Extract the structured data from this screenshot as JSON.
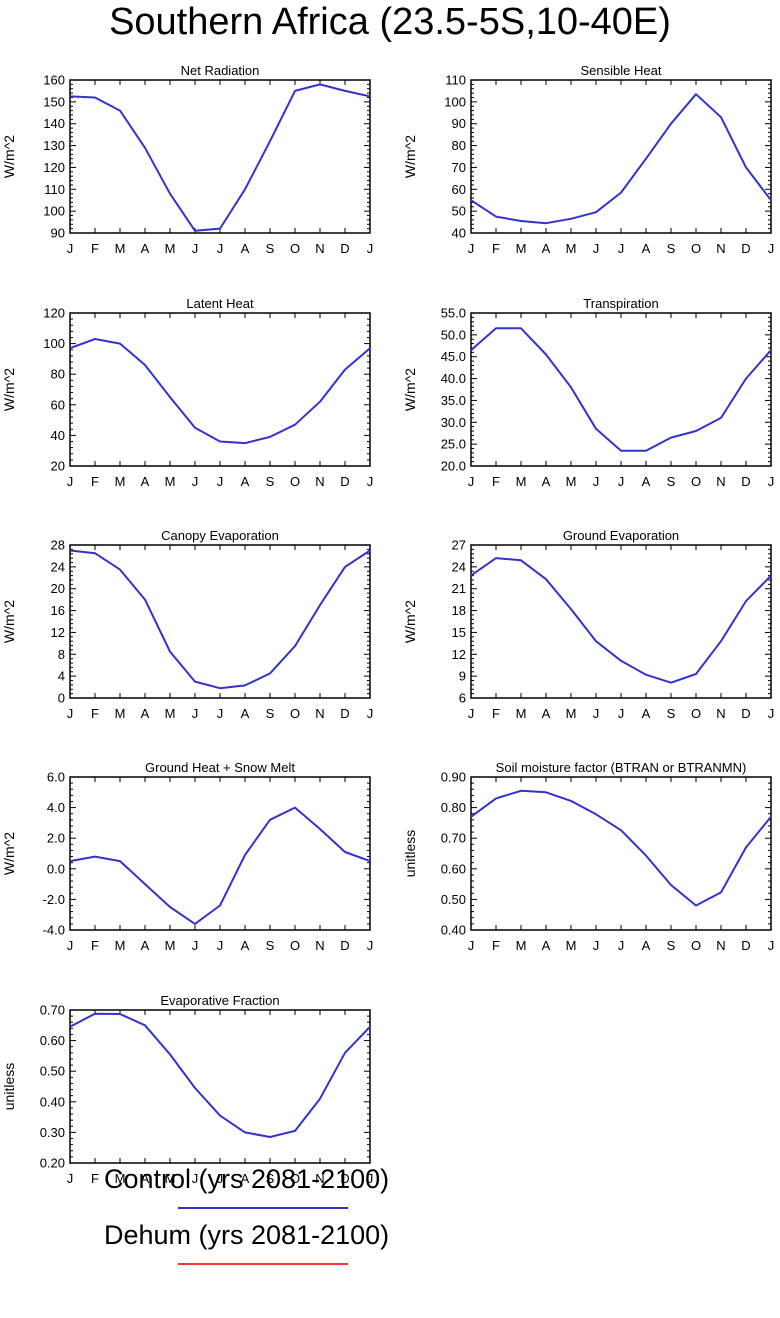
{
  "title": "Southern Africa (23.5-5S,10-40E)",
  "months": [
    "J",
    "F",
    "M",
    "A",
    "M",
    "J",
    "J",
    "A",
    "S",
    "O",
    "N",
    "D",
    "J"
  ],
  "legend": [
    {
      "label": "Control (yrs 2081-2100)",
      "color": "#3333cc"
    },
    {
      "label": "Dehum (yrs 2081-2100)",
      "color": "#ff3333"
    }
  ],
  "chart_data": [
    {
      "type": "line",
      "title": "Net Radiation",
      "ylabel": "W/m^2",
      "ylim": [
        90,
        160
      ],
      "yticks": [
        90,
        100,
        110,
        120,
        130,
        140,
        150,
        160
      ],
      "ytick_labels": [
        "90",
        "100",
        "110",
        "120",
        "130",
        "140",
        "150",
        "160"
      ],
      "series": [
        {
          "values": [
            152.5,
            152,
            146,
            129,
            108,
            91,
            92,
            110,
            132,
            155,
            158,
            155,
            152.5
          ]
        }
      ]
    },
    {
      "type": "line",
      "title": "Sensible Heat",
      "ylabel": "W/m^2",
      "ylim": [
        40,
        110
      ],
      "yticks": [
        40,
        50,
        60,
        70,
        80,
        90,
        100,
        110
      ],
      "ytick_labels": [
        "40",
        "50",
        "60",
        "70",
        "80",
        "90",
        "100",
        "110"
      ],
      "series": [
        {
          "values": [
            55,
            47.5,
            45.5,
            44.5,
            46.5,
            49.5,
            58.5,
            74,
            90,
            103.5,
            93,
            70,
            55
          ]
        }
      ]
    },
    {
      "type": "line",
      "title": "Latent Heat",
      "ylabel": "W/m^2",
      "ylim": [
        20,
        120
      ],
      "yticks": [
        20,
        40,
        60,
        80,
        100,
        120
      ],
      "ytick_labels": [
        "20",
        "40",
        "60",
        "80",
        "100",
        "120"
      ],
      "series": [
        {
          "values": [
            97,
            103,
            100,
            86,
            65,
            45,
            36,
            35,
            39,
            47,
            62,
            83,
            97
          ]
        }
      ]
    },
    {
      "type": "line",
      "title": "Transpiration",
      "ylabel": "W/m^2",
      "ylim": [
        20,
        55
      ],
      "yticks": [
        20,
        25,
        30,
        35,
        40,
        45,
        50,
        55
      ],
      "ytick_labels": [
        "20.0",
        "25.0",
        "30.0",
        "35.0",
        "40.0",
        "45.0",
        "50.0",
        "55.0"
      ],
      "series": [
        {
          "values": [
            46.5,
            51.5,
            51.5,
            45.5,
            38,
            28.5,
            23.5,
            23.5,
            26.5,
            28,
            31,
            40,
            46.5
          ]
        }
      ]
    },
    {
      "type": "line",
      "title": "Canopy Evaporation",
      "ylabel": "W/m^2",
      "ylim": [
        0,
        28
      ],
      "yticks": [
        0,
        4,
        8,
        12,
        16,
        20,
        24,
        28
      ],
      "ytick_labels": [
        "0",
        "4",
        "8",
        "12",
        "16",
        "20",
        "24",
        "28"
      ],
      "series": [
        {
          "values": [
            27,
            26.5,
            23.5,
            18,
            8.5,
            3,
            1.8,
            2.3,
            4.5,
            9.5,
            17,
            24,
            27
          ]
        }
      ]
    },
    {
      "type": "line",
      "title": "Ground Evaporation",
      "ylabel": "W/m^2",
      "ylim": [
        6,
        27
      ],
      "yticks": [
        6,
        9,
        12,
        15,
        18,
        21,
        24,
        27
      ],
      "ytick_labels": [
        "6",
        "9",
        "12",
        "15",
        "18",
        "21",
        "24",
        "27"
      ],
      "series": [
        {
          "values": [
            22.8,
            25.2,
            24.9,
            22.3,
            18.2,
            13.8,
            11.1,
            9.2,
            8.1,
            9.3,
            13.8,
            19.3,
            22.8
          ]
        }
      ]
    },
    {
      "type": "line",
      "title": "Ground Heat + Snow Melt",
      "ylabel": "W/m^2",
      "ylim": [
        -4,
        6
      ],
      "yticks": [
        -4,
        -2,
        0,
        2,
        4,
        6
      ],
      "ytick_labels": [
        "-4.0",
        "-2.0",
        "0.0",
        "2.0",
        "4.0",
        "6.0"
      ],
      "series": [
        {
          "values": [
            0.5,
            0.8,
            0.5,
            -1,
            -2.5,
            -3.6,
            -2.4,
            0.9,
            3.2,
            4,
            2.6,
            1.1,
            0.5
          ]
        }
      ]
    },
    {
      "type": "line",
      "title": "Soil moisture factor (BTRAN or BTRANMN)",
      "ylabel": "unitless",
      "ylim": [
        0.4,
        0.9
      ],
      "yticks": [
        0.4,
        0.5,
        0.6,
        0.7,
        0.8,
        0.9
      ],
      "ytick_labels": [
        "0.40",
        "0.50",
        "0.60",
        "0.70",
        "0.80",
        "0.90"
      ],
      "series": [
        {
          "values": [
            0.77,
            0.83,
            0.855,
            0.85,
            0.822,
            0.778,
            0.726,
            0.643,
            0.547,
            0.48,
            0.523,
            0.67,
            0.77
          ]
        }
      ]
    },
    {
      "type": "line",
      "title": "Evaporative Fraction",
      "ylabel": "unitless",
      "ylim": [
        0.2,
        0.7
      ],
      "yticks": [
        0.2,
        0.3,
        0.4,
        0.5,
        0.6,
        0.7
      ],
      "ytick_labels": [
        "0.20",
        "0.30",
        "0.40",
        "0.50",
        "0.60",
        "0.70"
      ],
      "series": [
        {
          "values": [
            0.645,
            0.688,
            0.687,
            0.65,
            0.555,
            0.445,
            0.355,
            0.3,
            0.285,
            0.305,
            0.41,
            0.56,
            0.645
          ]
        }
      ]
    }
  ]
}
